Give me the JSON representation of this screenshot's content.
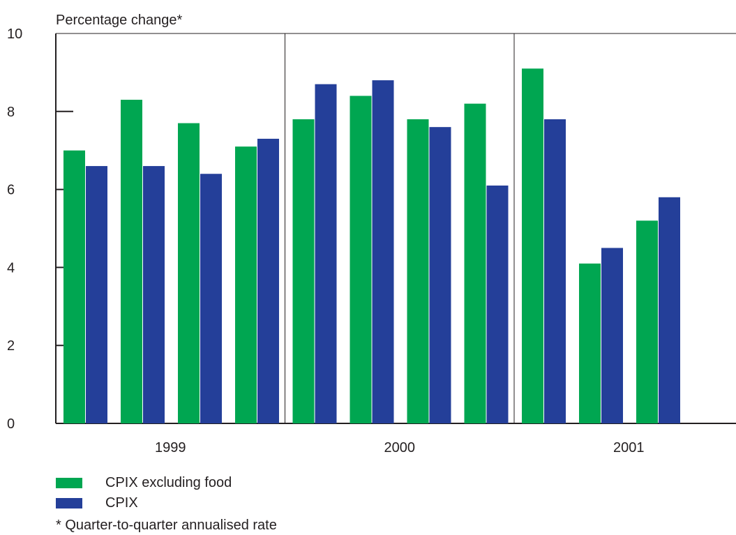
{
  "colors": {
    "cpix_excl_food": "#00a651",
    "cpix": "#243f99",
    "axis": "#231f20"
  },
  "chart_data": {
    "type": "bar",
    "ylabel": "Percentage change*",
    "ylim": [
      0,
      10
    ],
    "yticks": [
      0,
      2,
      4,
      6,
      8,
      10
    ],
    "groups": [
      {
        "label": "1999",
        "quarters": 4
      },
      {
        "label": "2000",
        "quarters": 4
      },
      {
        "label": "2001",
        "quarters": 4
      }
    ],
    "series": [
      {
        "name": "CPIX excluding food",
        "color_key": "cpix_excl_food",
        "values": [
          7.0,
          8.3,
          7.7,
          7.1,
          7.8,
          8.4,
          7.8,
          8.2,
          9.1,
          4.1,
          5.2,
          null
        ]
      },
      {
        "name": "CPIX",
        "color_key": "cpix",
        "values": [
          6.6,
          6.6,
          6.4,
          7.3,
          8.7,
          8.8,
          7.6,
          6.1,
          7.8,
          4.5,
          5.8,
          null
        ]
      }
    ],
    "legend_position": "bottom-left",
    "footnote": "* Quarter-to-quarter annualised rate",
    "grid": false
  }
}
